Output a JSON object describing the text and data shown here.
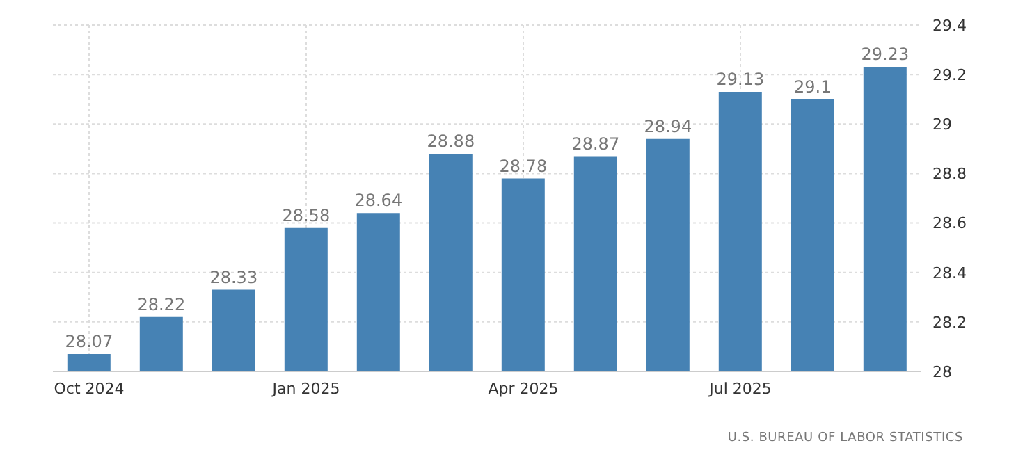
{
  "chart_data": {
    "type": "bar",
    "categories": [
      "Oct 2024",
      null,
      null,
      "Jan 2025",
      null,
      null,
      "Apr 2025",
      null,
      null,
      "Jul 2025",
      null,
      null
    ],
    "values": [
      28.07,
      28.22,
      28.33,
      28.58,
      28.64,
      28.88,
      28.78,
      28.87,
      28.94,
      29.13,
      29.1,
      29.23
    ],
    "color": "#4682b4",
    "ylim": [
      28,
      29.4
    ],
    "yticks": [
      28,
      28.2,
      28.4,
      28.6,
      28.8,
      29,
      29.2,
      29.4
    ],
    "grid": true,
    "data_labels": true,
    "annotations": [
      "U.S. BUREAU OF LABOR STATISTICS"
    ]
  }
}
